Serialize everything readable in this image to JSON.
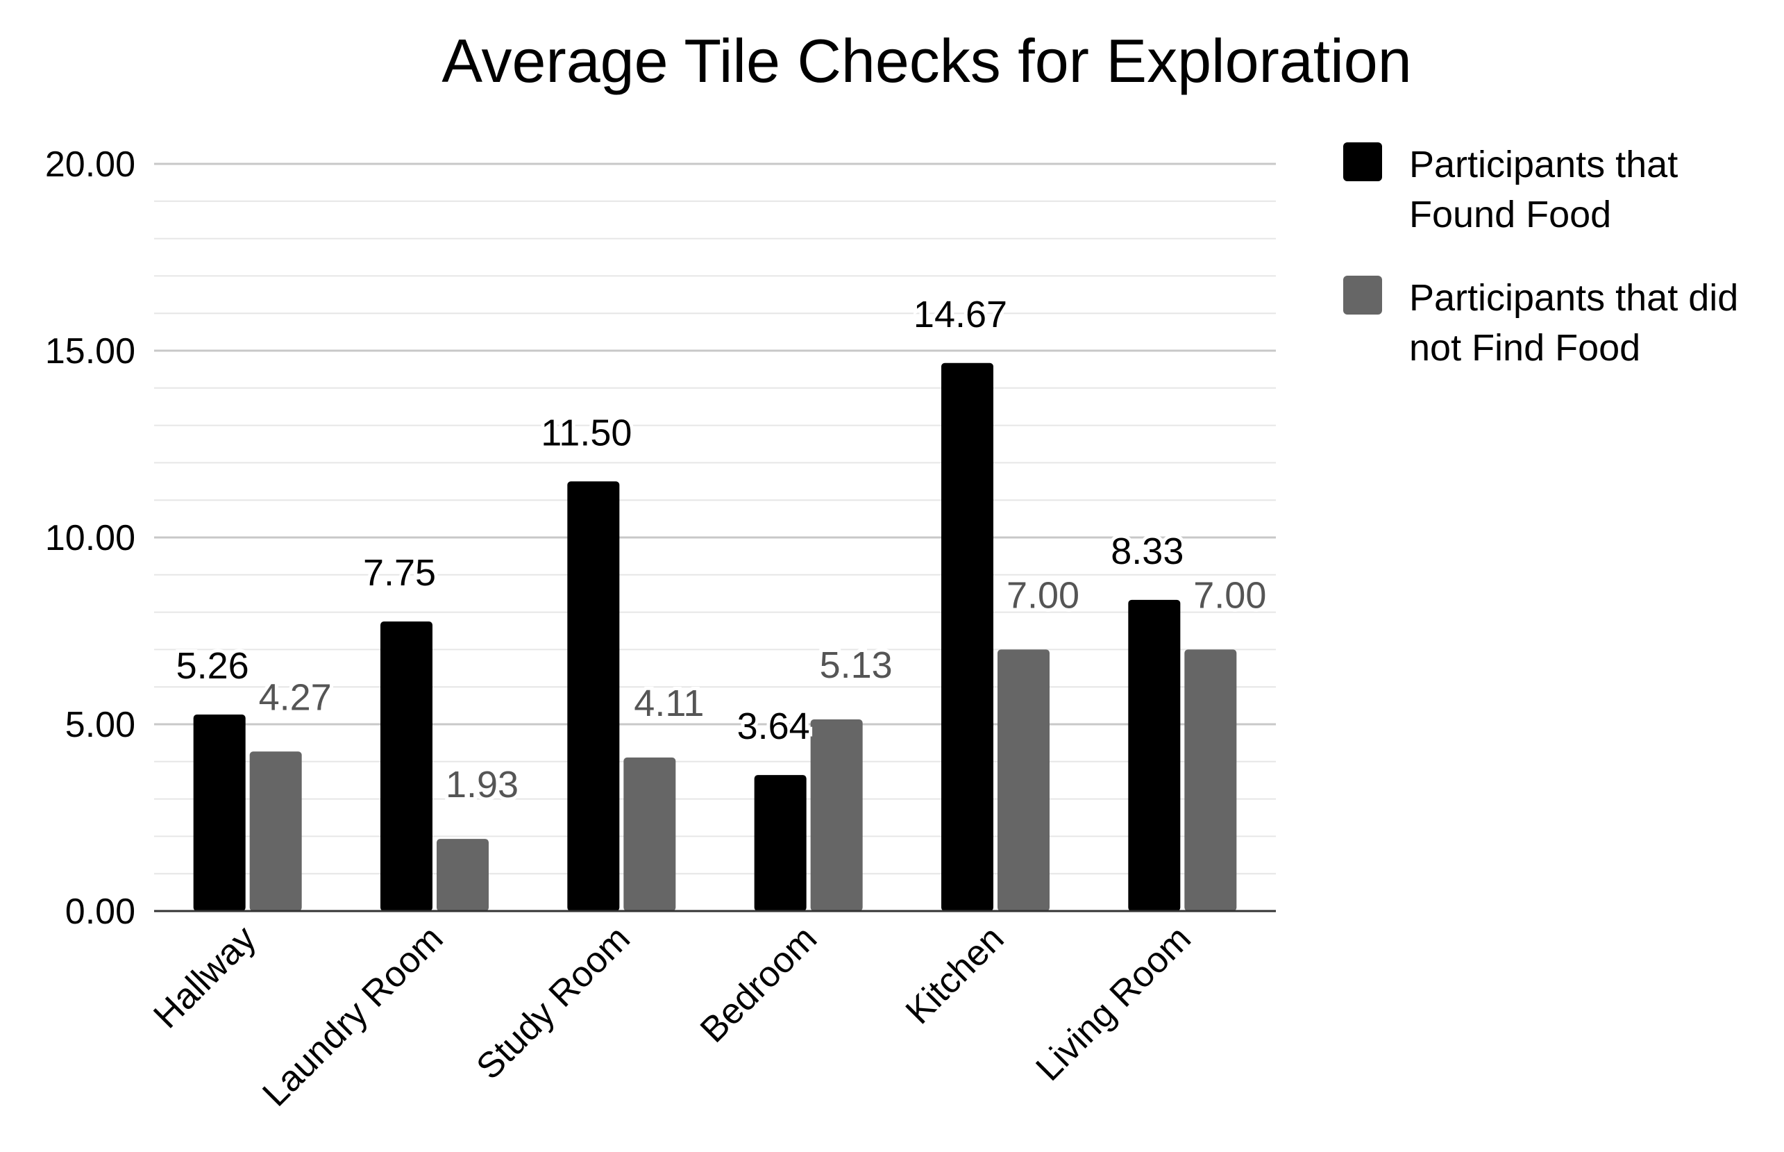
{
  "chart_data": {
    "type": "bar",
    "title": "Average Tile Checks for Exploration",
    "xlabel": "",
    "ylabel": "",
    "categories": [
      "Hallway",
      "Laundry Room",
      "Study Room",
      "Bedroom",
      "Kitchen",
      "Living Room"
    ],
    "series": [
      {
        "name": "Participants that Found Food",
        "legend_lines": [
          "Participants that",
          "Found Food"
        ],
        "color": "#000000",
        "label_color": "#000000",
        "values": [
          5.26,
          7.75,
          11.5,
          3.64,
          14.67,
          8.33
        ],
        "labels": [
          "5.26",
          "7.75",
          "11.50",
          "3.64",
          "14.67",
          "8.33"
        ]
      },
      {
        "name": "Participants that did not Find Food",
        "legend_lines": [
          "Participants that did",
          "not Find Food"
        ],
        "color": "#666666",
        "label_color": "#555555",
        "values": [
          4.27,
          1.93,
          4.11,
          5.13,
          7.0,
          7.0
        ],
        "labels": [
          "4.27",
          "1.93",
          "4.11",
          "5.13",
          "7.00",
          "7.00"
        ]
      }
    ],
    "ylim": [
      0,
      20
    ],
    "yticks": [
      "0.00",
      "5.00",
      "10.00",
      "15.00",
      "20.00"
    ],
    "ytick_values": [
      0,
      5,
      10,
      15,
      20
    ],
    "minor_gridlines": true,
    "legend_position": "right"
  }
}
